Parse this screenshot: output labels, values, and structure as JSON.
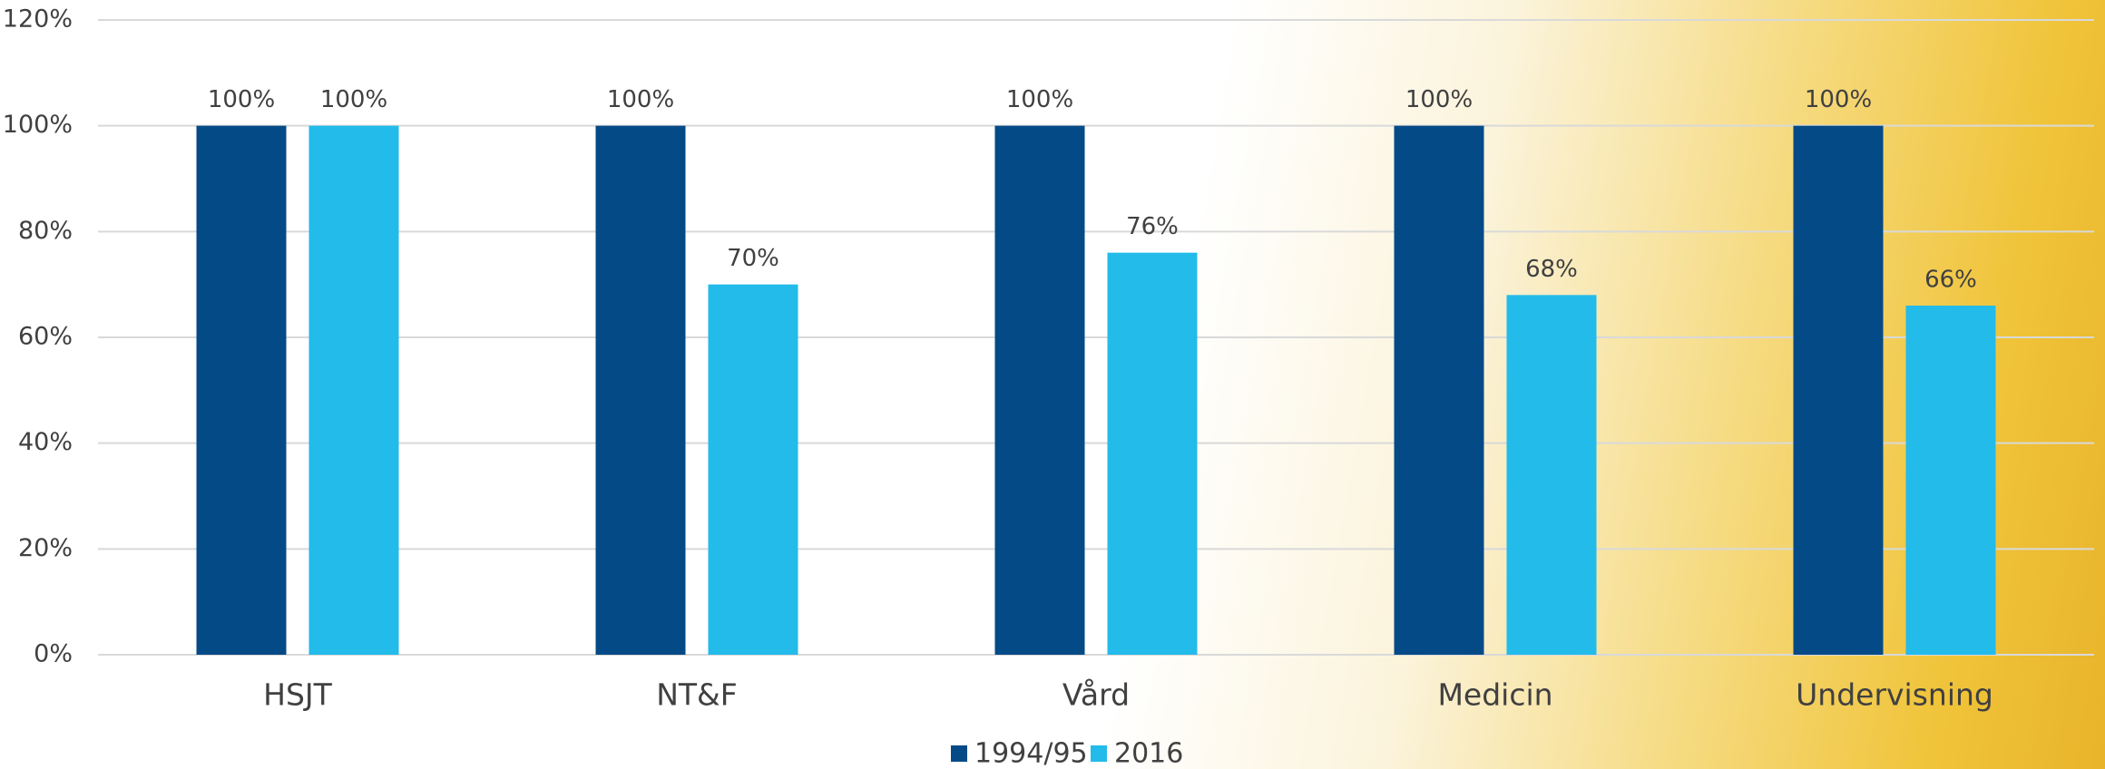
{
  "chart_data": {
    "type": "bar",
    "categories": [
      "HSJT",
      "NT&F",
      "Vård",
      "Medicin",
      "Undervisning"
    ],
    "series": [
      {
        "name": "1994/95",
        "color": "#044a86",
        "values": [
          100,
          100,
          100,
          100,
          100
        ],
        "value_labels": [
          "100%",
          "100%",
          "100%",
          "100%",
          "100%"
        ]
      },
      {
        "name": "2016",
        "color": "#22bbea",
        "values": [
          100,
          70,
          76,
          68,
          66
        ],
        "value_labels": [
          "100%",
          "70%",
          "76%",
          "68%",
          "66%"
        ]
      }
    ],
    "ylim": [
      0,
      120
    ],
    "yticks": [
      {
        "value": 0,
        "label": "0%"
      },
      {
        "value": 20,
        "label": "20%"
      },
      {
        "value": 40,
        "label": "40%"
      },
      {
        "value": 60,
        "label": "60%"
      },
      {
        "value": 80,
        "label": "80%"
      },
      {
        "value": 100,
        "label": "100%"
      },
      {
        "value": 120,
        "label": "120%"
      }
    ],
    "grid": true,
    "legend": "bottom"
  }
}
